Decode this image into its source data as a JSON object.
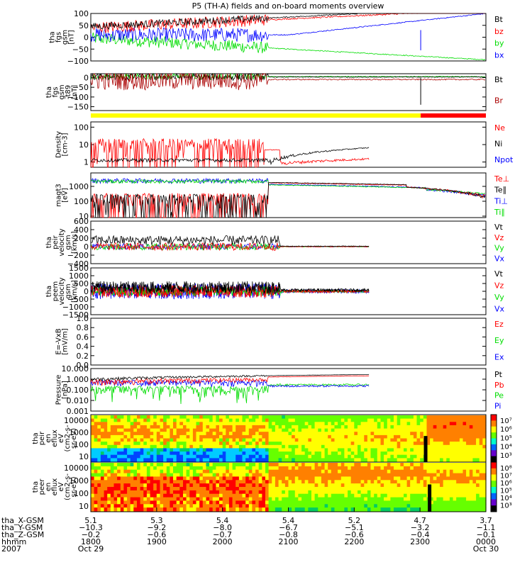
{
  "title": "P5 (TH-A) fields and on-board moments overview",
  "colors": {
    "black": "#000000",
    "red": "#ff0000",
    "green": "#00dd00",
    "blue": "#0000ff",
    "darkred": "#aa0000",
    "yellow": "#ffff00",
    "orange": "#ff8800"
  },
  "chart_data": [
    {
      "type": "line",
      "id": "fgs",
      "ylabel": [
        "tha",
        "fgs",
        "gsm",
        "[nT]"
      ],
      "yticks": [
        100,
        50,
        0,
        -50,
        -100
      ],
      "ylim": [
        -100,
        100
      ],
      "legend": [
        "Bt",
        "bz",
        "by",
        "bx"
      ],
      "legend_colors": [
        "black",
        "red",
        "green",
        "blue"
      ]
    },
    {
      "type": "line",
      "id": "fgs_t89",
      "ylabel": [
        "tha",
        "fgs",
        "gsm",
        "-t89",
        "[nT]"
      ],
      "yticks": [
        0,
        -50,
        -100,
        -150
      ],
      "ylim": [
        -170,
        20
      ],
      "legend": [
        "Bt",
        "Br"
      ],
      "legend_colors": [
        "black",
        "darkred"
      ]
    },
    {
      "type": "line",
      "id": "density",
      "scale": "log",
      "ylabel": [
        "Density",
        "[cm-3]"
      ],
      "yticks": [
        "100",
        "10",
        "1"
      ],
      "ylim": [
        0.5,
        200
      ],
      "legend": [
        "Ne",
        "Ni",
        "Npot"
      ],
      "legend_colors": [
        "red",
        "black",
        "blue"
      ]
    },
    {
      "type": "line",
      "id": "temperature",
      "scale": "log",
      "ylabel": [
        "magt3",
        "[eV]"
      ],
      "yticks": [
        "1000",
        "100",
        "10"
      ],
      "ylim": [
        8,
        8000
      ],
      "legend": [
        "Te⊥",
        "Te∥",
        "Ti⊥",
        "Ti∥"
      ],
      "legend_colors": [
        "red",
        "black",
        "blue",
        "green"
      ]
    },
    {
      "type": "line",
      "id": "peir_velocity",
      "ylabel": [
        "tha",
        "peir",
        "velocity",
        "gsm",
        "[km/s]"
      ],
      "yticks": [
        600,
        400,
        200,
        0,
        -200,
        -400
      ],
      "ylim": [
        -400,
        600
      ],
      "legend": [
        "Vt",
        "Vz",
        "Vy",
        "Vx"
      ],
      "legend_colors": [
        "black",
        "red",
        "green",
        "blue"
      ]
    },
    {
      "type": "line",
      "id": "peem_velocity",
      "ylabel": [
        "tha",
        "peem",
        "velocity",
        "gsm",
        "[km/s]"
      ],
      "yticks": [
        1500,
        1000,
        500,
        0,
        -500,
        -1000,
        -1500
      ],
      "ylim": [
        -1500,
        1500
      ],
      "legend": [
        "Vt",
        "Vz",
        "Vy",
        "Vx"
      ],
      "legend_colors": [
        "black",
        "red",
        "green",
        "blue"
      ]
    },
    {
      "type": "line",
      "id": "efield",
      "ylabel": [
        "E=-VxB",
        "[mV/m]"
      ],
      "yticks": [
        "1.0",
        "0.8",
        "0.6",
        "0.4",
        "0.2",
        "0.0"
      ],
      "ylim": [
        0,
        1
      ],
      "legend": [
        "Ez",
        "Ey",
        "Ex"
      ],
      "legend_colors": [
        "red",
        "green",
        "blue"
      ]
    },
    {
      "type": "line",
      "id": "pressure",
      "scale": "log",
      "ylabel": [
        "Pressure",
        "[nPa]"
      ],
      "yticks": [
        "10.000",
        "1.000",
        "0.100",
        "0.010",
        "0.001"
      ],
      "ylim": [
        0.001,
        10
      ],
      "legend": [
        "Pt",
        "Pb",
        "Pe",
        "Pi"
      ],
      "legend_colors": [
        "black",
        "red",
        "green",
        "blue"
      ]
    },
    {
      "type": "heatmap",
      "id": "peir_spec",
      "ylabel": [
        "tha",
        "peir",
        "en",
        "eflux",
        "eV",
        "(cm2-s-",
        "sr-eV)"
      ],
      "yticks": [
        "10000",
        "1000",
        "100",
        "10"
      ],
      "colorbar": [
        "10⁷",
        "10⁶",
        "10⁵",
        "10⁴",
        "10³"
      ]
    },
    {
      "type": "heatmap",
      "id": "peer_spec",
      "ylabel": [
        "tha",
        "peer",
        "en",
        "eflux",
        "eV",
        "(cm2-s-",
        "sr-eV)"
      ],
      "yticks": [
        "10000",
        "1000",
        "100",
        "10"
      ],
      "colorbar": [
        "10⁸",
        "10⁷",
        "10⁶",
        "10⁵",
        "10⁴",
        "10³"
      ]
    }
  ],
  "xaxis": {
    "rows": [
      {
        "label": "tha_X-GSM",
        "values": [
          "5.1",
          "5.3",
          "5.4",
          "5.4",
          "5.2",
          "4.7",
          "3.7"
        ]
      },
      {
        "label": "tha_Y-GSM",
        "values": [
          "−10.3",
          "−9.2",
          "−8.0",
          "−6.7",
          "−5.1",
          "−3.2",
          "−1.1"
        ]
      },
      {
        "label": "tha_Z-GSM",
        "values": [
          "−0.2",
          "−0.6",
          "−0.7",
          "−0.8",
          "−0.6",
          "−0.4",
          "−0.1"
        ]
      },
      {
        "label": "hhmm",
        "values": [
          "1800",
          "1900",
          "2000",
          "2100",
          "2200",
          "2300",
          "0000"
        ]
      }
    ],
    "year": "2007",
    "date_start": "Oct 29",
    "date_end": "Oct 30"
  }
}
